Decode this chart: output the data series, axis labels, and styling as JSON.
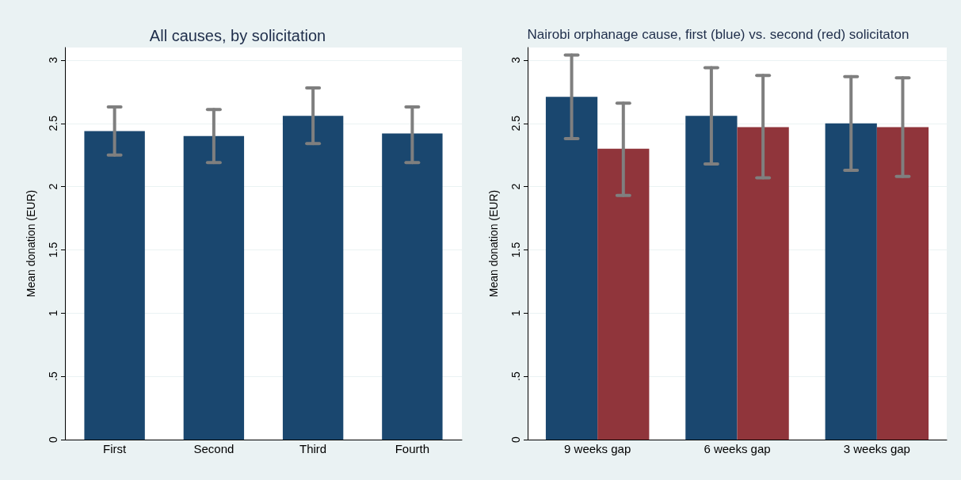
{
  "chart_data": [
    {
      "type": "bar",
      "title": "All causes, by solicitation",
      "ylabel": "Mean donation (EUR)",
      "categories": [
        "First",
        "Second",
        "Third",
        "Fourth"
      ],
      "series": [
        {
          "color": "#1a476f",
          "values": [
            2.44,
            2.4,
            2.56,
            2.42
          ],
          "errors": [
            [
              2.25,
              2.63
            ],
            [
              2.19,
              2.61
            ],
            [
              2.34,
              2.78
            ],
            [
              2.19,
              2.63
            ]
          ]
        }
      ],
      "ylim": [
        0,
        3.1
      ],
      "yticks": [
        0,
        {
          "value": 0.5,
          "label": ".5"
        },
        1,
        1.5,
        2,
        2.5,
        3
      ],
      "grid": "y"
    },
    {
      "type": "bar",
      "title": "Nairobi orphanage cause, first (blue) vs. second (red) solicitaton",
      "ylabel": "Mean donation (EUR)",
      "categories": [
        "9 weeks gap",
        "6 weeks gap",
        "3 weeks gap"
      ],
      "series": [
        {
          "color": "#1a476f",
          "values": [
            2.71,
            2.56,
            2.5
          ],
          "errors": [
            [
              2.38,
              3.04
            ],
            [
              2.18,
              2.94
            ],
            [
              2.13,
              2.87
            ]
          ]
        },
        {
          "color": "#90353b",
          "values": [
            2.3,
            2.47,
            2.47
          ],
          "errors": [
            [
              1.93,
              2.66
            ],
            [
              2.07,
              2.88
            ],
            [
              2.08,
              2.86
            ]
          ]
        }
      ],
      "ylim": [
        0,
        3.1
      ],
      "yticks": [
        0,
        {
          "value": 0.5,
          "label": ".5"
        },
        1,
        1.5,
        2,
        2.5,
        3
      ],
      "grid": "y"
    }
  ]
}
